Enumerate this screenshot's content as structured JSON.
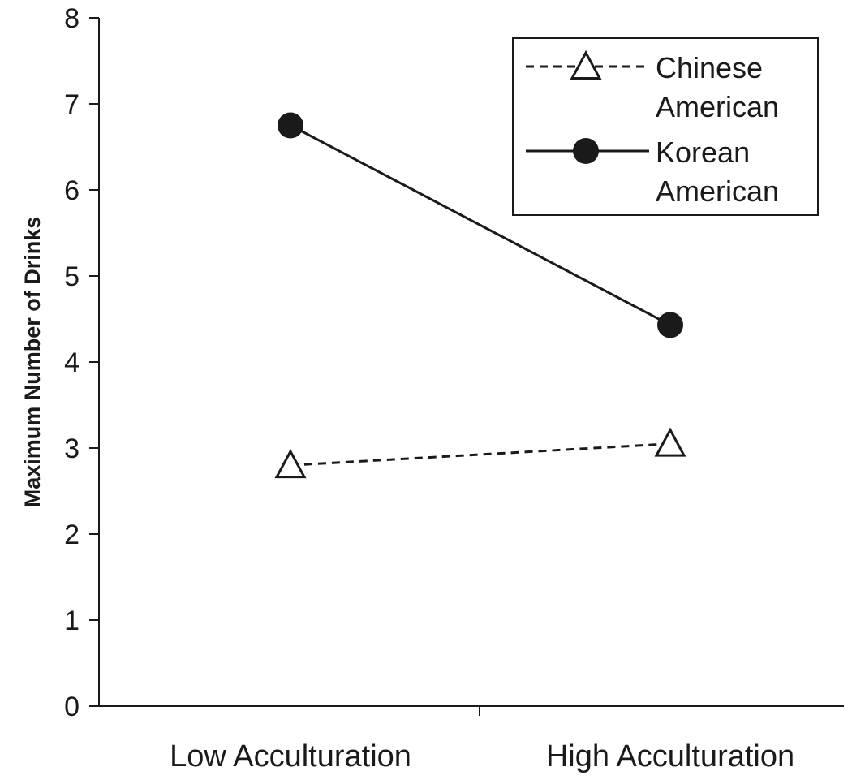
{
  "chart_data": {
    "type": "line",
    "title": "",
    "xlabel": "",
    "ylabel": "Maximum Number of Drinks",
    "categories": [
      "Low Acculturation",
      "High Acculturation"
    ],
    "ylim": [
      0,
      8
    ],
    "yticks": [
      "0",
      "1",
      "2",
      "3",
      "4",
      "5",
      "6",
      "7",
      "8"
    ],
    "grid": false,
    "legend_position": "top-right",
    "series": [
      {
        "name_lines": [
          "Chinese",
          "American"
        ],
        "values": [
          2.8,
          3.05
        ],
        "line_style": "dashed",
        "marker": "open-triangle",
        "color": "#1a1a1a"
      },
      {
        "name_lines": [
          "Korean",
          "American"
        ],
        "values": [
          6.75,
          4.43
        ],
        "line_style": "solid",
        "marker": "filled-circle",
        "color": "#1a1a1a"
      }
    ]
  }
}
